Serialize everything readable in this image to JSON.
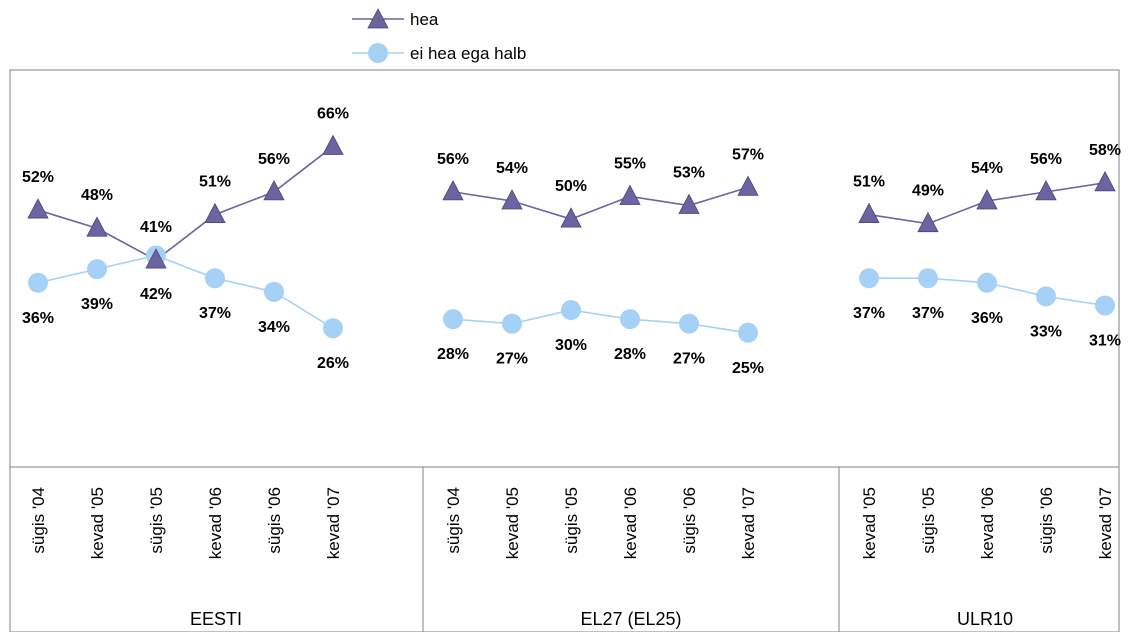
{
  "chart_data": {
    "type": "line",
    "legend": {
      "position": "top",
      "entries": [
        "hea",
        "ei hea ega halb"
      ]
    },
    "colors": {
      "hea": "#6a64a0",
      "ei hea ega halb": "#a6d1f7"
    },
    "groups": [
      {
        "name": "EESTI",
        "categories": [
          "sügis '04",
          "kevad '05",
          "sügis '05",
          "kevad '06",
          "sügis '06",
          "kevad '07"
        ],
        "series": [
          {
            "name": "hea",
            "values": [
              52,
              48,
              41,
              51,
              56,
              66
            ],
            "labels": [
              "52%",
              "48%",
              "41%",
              "51%",
              "56%",
              "66%"
            ]
          },
          {
            "name": "ei hea ega halb",
            "values": [
              36,
              39,
              42,
              37,
              34,
              26
            ],
            "labels": [
              "36%",
              "39%",
              "42%",
              "37%",
              "34%",
              "26%"
            ]
          }
        ]
      },
      {
        "name": "EL27 (EL25)",
        "categories": [
          "sügis '04",
          "kevad '05",
          "sügis '05",
          "kevad '06",
          "sügis '06",
          "kevad '07"
        ],
        "series": [
          {
            "name": "hea",
            "values": [
              56,
              54,
              50,
              55,
              53,
              57
            ],
            "labels": [
              "56%",
              "54%",
              "50%",
              "55%",
              "53%",
              "57%"
            ]
          },
          {
            "name": "ei hea ega halb",
            "values": [
              28,
              27,
              30,
              28,
              27,
              25
            ],
            "labels": [
              "28%",
              "27%",
              "30%",
              "28%",
              "27%",
              "25%"
            ]
          }
        ]
      },
      {
        "name": "ULR10",
        "categories": [
          "kevad '05",
          "sügis '05",
          "kevad '06",
          "sügis '06",
          "kevad '07"
        ],
        "series": [
          {
            "name": "hea",
            "values": [
              51,
              49,
              54,
              56,
              58
            ],
            "labels": [
              "51%",
              "49%",
              "54%",
              "56%",
              "58%"
            ]
          },
          {
            "name": "ei hea ega halb",
            "values": [
              37,
              37,
              36,
              33,
              31
            ],
            "labels": [
              "37%",
              "37%",
              "36%",
              "33%",
              "31%"
            ]
          }
        ]
      }
    ]
  }
}
